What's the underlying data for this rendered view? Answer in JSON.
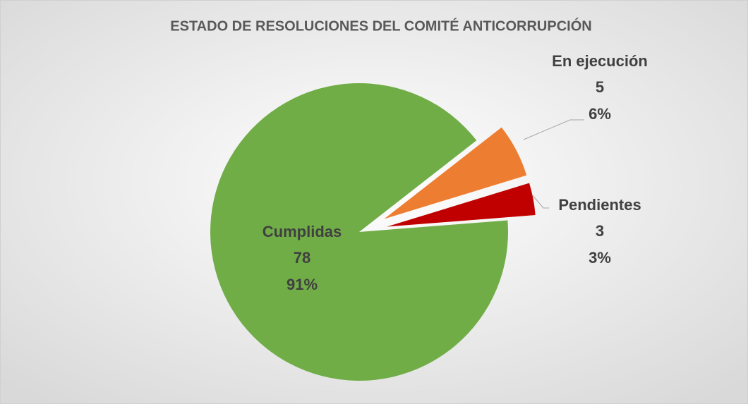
{
  "chart_data": {
    "type": "pie",
    "title": "ESTADO DE RESOLUCIONES DEL COMITÉ ANTICORRUPCIÓN",
    "categories": [
      "Cumplidas",
      "En ejecución",
      "Pendientes"
    ],
    "values": [
      78,
      5,
      3
    ],
    "percent_labels": [
      "91%",
      "6%",
      "3%"
    ],
    "colors": [
      "#70ad47",
      "#ed7d31",
      "#c00000"
    ]
  }
}
